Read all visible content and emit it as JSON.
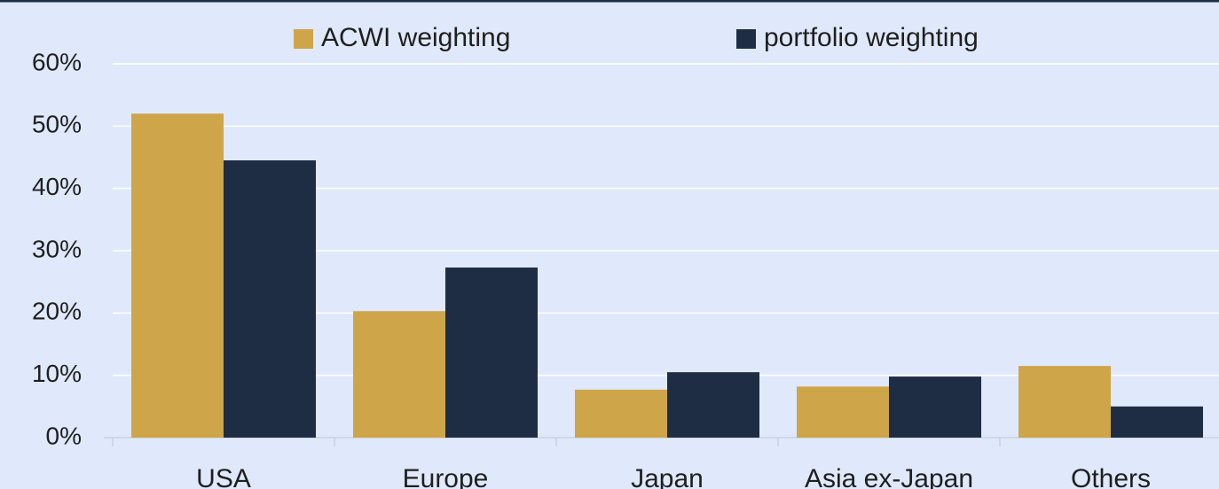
{
  "chart_data": {
    "type": "bar",
    "categories": [
      "USA",
      "Europe",
      "Japan",
      "Asia ex-Japan",
      "Others"
    ],
    "series": [
      {
        "name": "ACWI weighting",
        "color": "#cfa54a",
        "values": [
          52,
          20.3,
          7.7,
          8.2,
          11.5
        ]
      },
      {
        "name": "portfolio weighting",
        "color": "#1f2d44",
        "values": [
          44.5,
          27.3,
          10.5,
          9.8,
          5.0
        ]
      }
    ],
    "ylim": [
      0,
      60
    ],
    "yticks": [
      {
        "value": 0,
        "label": "0%"
      },
      {
        "value": 10,
        "label": "10%"
      },
      {
        "value": 20,
        "label": "20%"
      },
      {
        "value": 30,
        "label": "30%"
      },
      {
        "value": 40,
        "label": "40%"
      },
      {
        "value": 50,
        "label": "50%"
      },
      {
        "value": 60,
        "label": "60%"
      }
    ],
    "grid": true
  }
}
